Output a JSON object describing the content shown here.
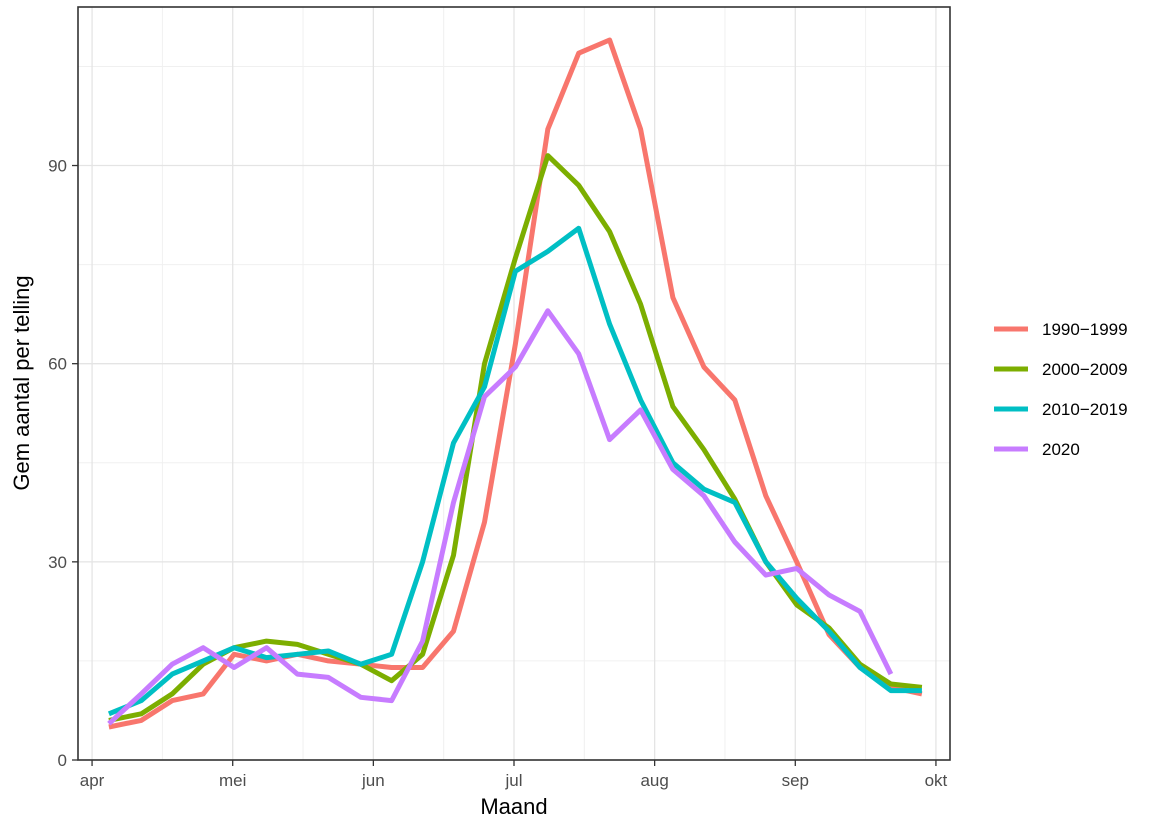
{
  "chart_data": {
    "type": "line",
    "title": "",
    "xlabel": "Maand",
    "ylabel": "Gem aantal per telling",
    "x_tick_labels": [
      "apr",
      "mei",
      "jun",
      "jul",
      "aug",
      "sep",
      "okt"
    ],
    "x_ticks_month_index": [
      0,
      1,
      2,
      3,
      4,
      5,
      6
    ],
    "xlim": [
      -0.1,
      6.1
    ],
    "y_ticks": [
      0,
      30,
      60,
      90
    ],
    "y_tick_labels": [
      "0",
      "30",
      "60",
      "90"
    ],
    "ylim": [
      0,
      114
    ],
    "grid": true,
    "legend_position": "right",
    "series": [
      {
        "name": "1990−1999",
        "color": "#F8766D",
        "x": [
          0.12,
          0.35,
          0.57,
          0.79,
          1.01,
          1.24,
          1.46,
          1.68,
          1.91,
          2.13,
          2.35,
          2.57,
          2.79,
          3.01,
          3.24,
          3.46,
          3.68,
          3.9,
          4.13,
          4.35,
          4.57,
          4.79,
          5.01,
          5.24,
          5.46,
          5.68,
          5.9
        ],
        "y": [
          5,
          6,
          9,
          10,
          16,
          15,
          16,
          15,
          14.5,
          14,
          14,
          19.5,
          36,
          63,
          95.5,
          107,
          109,
          95.5,
          70,
          59.5,
          54.5,
          40,
          30,
          19,
          14,
          11,
          10
        ]
      },
      {
        "name": "2000−2009",
        "color": "#7CAE00",
        "x": [
          0.12,
          0.35,
          0.57,
          0.79,
          1.01,
          1.24,
          1.46,
          1.68,
          1.91,
          2.13,
          2.35,
          2.57,
          2.79,
          3.01,
          3.24,
          3.46,
          3.68,
          3.9,
          4.13,
          4.35,
          4.57,
          4.79,
          5.01,
          5.24,
          5.46,
          5.68,
          5.9
        ],
        "y": [
          6,
          7,
          10,
          14.5,
          17,
          18,
          17.5,
          16,
          14.5,
          12,
          16,
          31,
          60,
          76,
          91.5,
          87,
          80,
          69,
          53.5,
          47,
          39.5,
          30,
          23.5,
          20,
          14.5,
          11.5,
          11
        ]
      },
      {
        "name": "2010−2019",
        "color": "#00BFC4",
        "x": [
          0.12,
          0.35,
          0.57,
          0.79,
          1.01,
          1.24,
          1.46,
          1.68,
          1.91,
          2.13,
          2.35,
          2.57,
          2.79,
          3.01,
          3.24,
          3.46,
          3.68,
          3.9,
          4.13,
          4.35,
          4.57,
          4.79,
          5.01,
          5.24,
          5.46,
          5.68,
          5.9
        ],
        "y": [
          7,
          9,
          13,
          15,
          17,
          15.5,
          16,
          16.5,
          14.5,
          16,
          30,
          48,
          56.5,
          74,
          77,
          80.5,
          66,
          54.5,
          45,
          41,
          39,
          30,
          24.5,
          19.5,
          14,
          10.5,
          10.5
        ]
      },
      {
        "name": "2020",
        "color": "#C77CFF",
        "x": [
          0.12,
          0.35,
          0.57,
          0.79,
          1.01,
          1.24,
          1.46,
          1.68,
          1.91,
          2.13,
          2.35,
          2.57,
          2.79,
          3.01,
          3.24,
          3.46,
          3.68,
          3.9,
          4.13,
          4.35,
          4.57,
          4.79,
          5.01,
          5.24,
          5.46,
          5.68,
          5.9
        ],
        "y": [
          5.5,
          10,
          14.5,
          17,
          14,
          17,
          13,
          12.5,
          9.5,
          9,
          18,
          39,
          55,
          59.5,
          68,
          61.5,
          48.5,
          53,
          44,
          40,
          33,
          28,
          29,
          25,
          22.5,
          13,
          null
        ]
      }
    ]
  }
}
